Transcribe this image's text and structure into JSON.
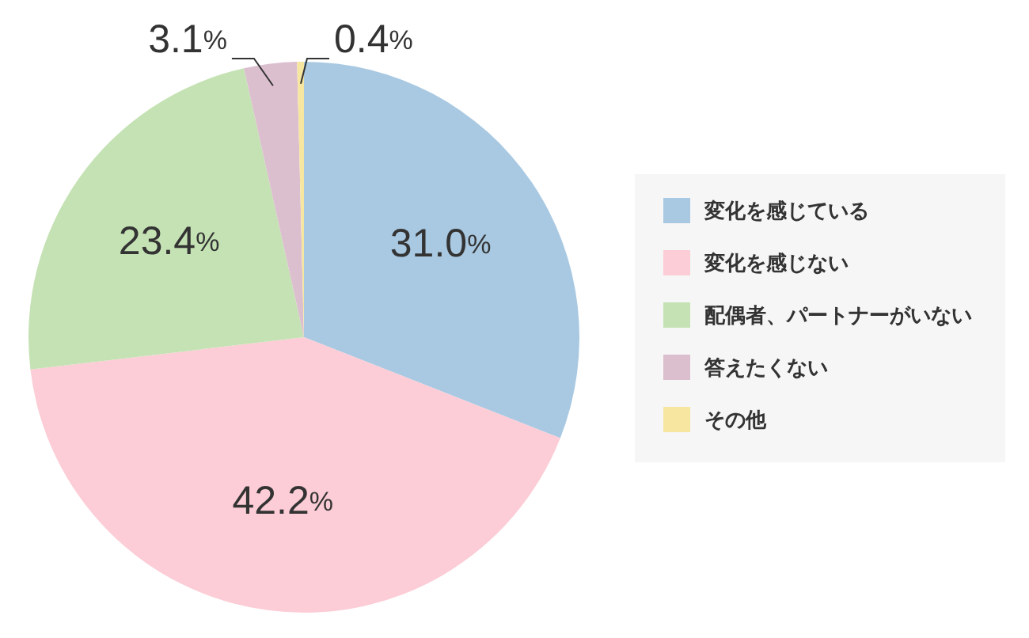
{
  "chart_data": {
    "type": "pie",
    "categories": [
      "変化を感じている",
      "変化を感じない",
      "配偶者、パートナーがいない",
      "答えたくない",
      "その他"
    ],
    "values": [
      31.0,
      42.2,
      23.4,
      3.1,
      0.4
    ],
    "colors": [
      "#a9c9e2",
      "#fccdd6",
      "#c5e2b4",
      "#dcbfcf",
      "#f6e6a0"
    ],
    "value_labels": [
      "31.0%",
      "42.2%",
      "23.4%",
      "3.1%",
      "0.4%"
    ],
    "legend": "right"
  }
}
